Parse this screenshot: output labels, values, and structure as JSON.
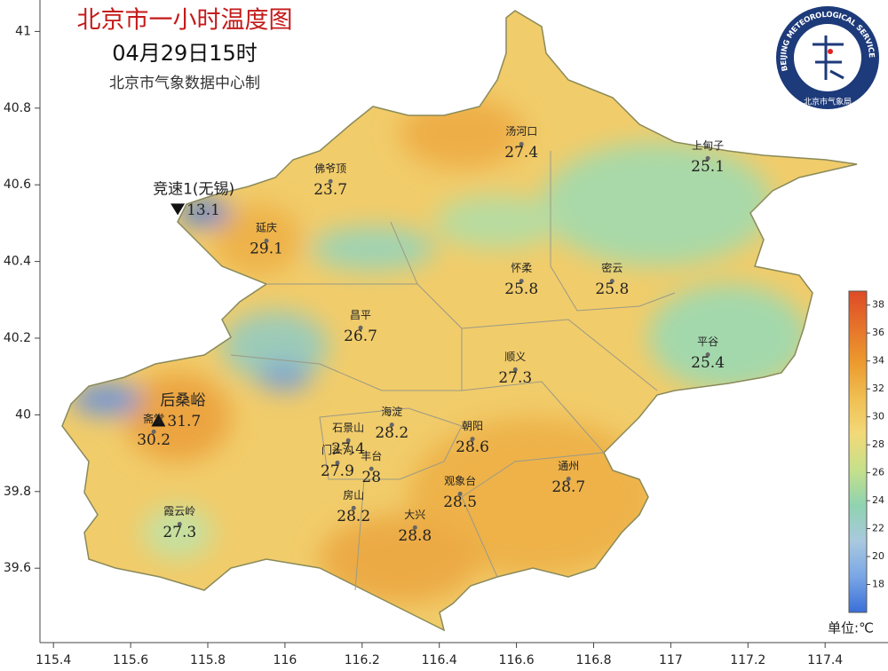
{
  "header": {
    "title": "北京市一小时温度图",
    "time": "04月29日15时",
    "source": "北京市气象数据中心制"
  },
  "logo": {
    "en": "BEIJING METEOROLOGICAL SERVICE",
    "cn": "北京市气象局"
  },
  "axes": {
    "xlim": [
      115.365,
      117.563
    ],
    "xticks": [
      115.4,
      115.6,
      115.8,
      116,
      116.2,
      116.4,
      116.6,
      116.8,
      117,
      117.2,
      117.4
    ],
    "ylim": [
      39.406,
      41.082
    ],
    "yticks": [
      39.6,
      39.8,
      40,
      40.2,
      40.4,
      40.6,
      40.8,
      41
    ]
  },
  "stations": [
    {
      "name": "汤河口",
      "lon": 116.613,
      "lat": 40.72,
      "value": 27.4
    },
    {
      "name": "上甸子",
      "lon": 117.096,
      "lat": 40.683,
      "value": 25.1
    },
    {
      "name": "佛爷顶",
      "lon": 116.118,
      "lat": 40.623,
      "value": 23.7
    },
    {
      "name": "竞速1(无锡)",
      "lon": 115.722,
      "lat": 40.537,
      "value": 13.1,
      "marker": "down"
    },
    {
      "name": "延庆",
      "lon": 115.952,
      "lat": 40.468,
      "value": 29.1
    },
    {
      "name": "怀柔",
      "lon": 116.613,
      "lat": 40.363,
      "value": 25.8
    },
    {
      "name": "密云",
      "lon": 116.848,
      "lat": 40.363,
      "value": 25.8
    },
    {
      "name": "昌平",
      "lon": 116.196,
      "lat": 40.241,
      "value": 26.7
    },
    {
      "name": "平谷",
      "lon": 117.096,
      "lat": 40.171,
      "value": 25.4
    },
    {
      "name": "顺义",
      "lon": 116.597,
      "lat": 40.132,
      "value": 27.3
    },
    {
      "name": "海淀",
      "lon": 116.277,
      "lat": 39.988,
      "value": 28.2
    },
    {
      "name": "后桑峪",
      "lon": 115.672,
      "lat": 39.986,
      "value": 31.7,
      "marker": "up"
    },
    {
      "name": "斋堂",
      "lon": 115.66,
      "lat": 39.97,
      "value": 30.2
    },
    {
      "name": "朝阳",
      "lon": 116.486,
      "lat": 39.951,
      "value": 28.6
    },
    {
      "name": "石景山",
      "lon": 116.164,
      "lat": 39.947,
      "value": 27.4
    },
    {
      "name": "门头沟",
      "lon": 116.136,
      "lat": 39.889,
      "value": 27.9
    },
    {
      "name": "丰台",
      "lon": 116.224,
      "lat": 39.873,
      "value": 28.0
    },
    {
      "name": "观象台",
      "lon": 116.454,
      "lat": 39.808,
      "value": 28.5
    },
    {
      "name": "通州",
      "lon": 116.735,
      "lat": 39.847,
      "value": 28.7
    },
    {
      "name": "房山",
      "lon": 116.178,
      "lat": 39.771,
      "value": 28.2
    },
    {
      "name": "霞云岭",
      "lon": 115.727,
      "lat": 39.729,
      "value": 27.3
    },
    {
      "name": "大兴",
      "lon": 116.337,
      "lat": 39.72,
      "value": 28.8
    }
  ],
  "colorbar": {
    "lim": [
      16,
      39
    ],
    "ticks": [
      18,
      20,
      22,
      24,
      26,
      28,
      30,
      32,
      34,
      36,
      38
    ],
    "unit": "单位:℃",
    "colors": [
      "#3a6fd8",
      "#7aa6e6",
      "#a9c9de",
      "#8fd3b0",
      "#c6e08a",
      "#f2d978",
      "#f0bf52",
      "#ec9a2e",
      "#e6732a",
      "#de4a26"
    ]
  }
}
